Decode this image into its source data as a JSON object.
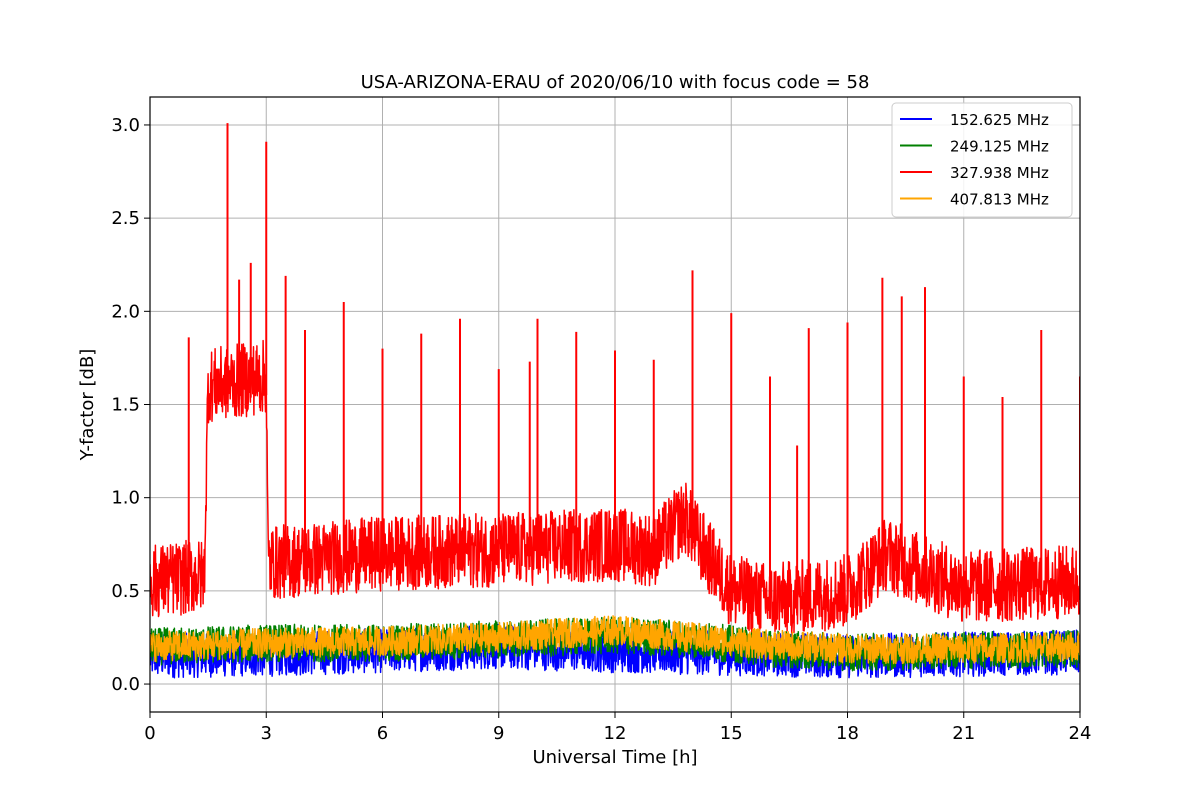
{
  "chart_data": {
    "type": "line",
    "title": "USA-ARIZONA-ERAU of 2020/06/10 with focus code = 58",
    "xlabel": "Universal Time [h]",
    "ylabel": "Y-factor [dB]",
    "xlim": [
      0,
      24
    ],
    "ylim": [
      -0.15,
      3.15
    ],
    "xticks": [
      0,
      3,
      6,
      9,
      12,
      15,
      18,
      21,
      24
    ],
    "xtick_labels": [
      "0",
      "3",
      "6",
      "9",
      "12",
      "15",
      "18",
      "21",
      "24"
    ],
    "yticks": [
      0.0,
      0.5,
      1.0,
      1.5,
      2.0,
      2.5,
      3.0
    ],
    "ytick_labels": [
      "0.0",
      "0.5",
      "1.0",
      "1.5",
      "2.0",
      "2.5",
      "3.0"
    ],
    "grid": true,
    "legend_position": "top-right",
    "series": [
      {
        "name": "152.625 MHz",
        "color": "#0000ff",
        "baseline": [
          [
            0,
            0.15
          ],
          [
            3,
            0.16
          ],
          [
            6,
            0.18
          ],
          [
            9,
            0.2
          ],
          [
            12,
            0.18
          ],
          [
            14,
            0.17
          ],
          [
            16,
            0.16
          ],
          [
            18,
            0.15
          ],
          [
            21,
            0.16
          ],
          [
            24,
            0.17
          ]
        ],
        "noise": 0.12,
        "spikes": []
      },
      {
        "name": "249.125 MHz",
        "color": "#008000",
        "baseline": [
          [
            0,
            0.2
          ],
          [
            3,
            0.22
          ],
          [
            6,
            0.22
          ],
          [
            9,
            0.24
          ],
          [
            12,
            0.26
          ],
          [
            14,
            0.24
          ],
          [
            16,
            0.19
          ],
          [
            18,
            0.17
          ],
          [
            21,
            0.18
          ],
          [
            24,
            0.19
          ]
        ],
        "noise": 0.1,
        "spikes": []
      },
      {
        "name": "327.938 MHz",
        "color": "#ff0000",
        "baseline": [
          [
            0,
            0.55
          ],
          [
            1.4,
            0.58
          ],
          [
            1.5,
            1.6
          ],
          [
            3.0,
            1.65
          ],
          [
            3.05,
            0.65
          ],
          [
            6,
            0.7
          ],
          [
            9,
            0.72
          ],
          [
            12,
            0.75
          ],
          [
            13,
            0.72
          ],
          [
            13.8,
            0.9
          ],
          [
            14.2,
            0.75
          ],
          [
            15,
            0.5
          ],
          [
            16,
            0.45
          ],
          [
            18,
            0.5
          ],
          [
            19,
            0.7
          ],
          [
            20,
            0.6
          ],
          [
            21,
            0.52
          ],
          [
            24,
            0.55
          ]
        ],
        "noise": 0.2,
        "spikes": [
          [
            1.0,
            1.86
          ],
          [
            2.0,
            3.01
          ],
          [
            2.3,
            2.17
          ],
          [
            2.6,
            2.26
          ],
          [
            3.0,
            2.91
          ],
          [
            3.5,
            2.19
          ],
          [
            4.0,
            1.9
          ],
          [
            5.0,
            2.05
          ],
          [
            6.0,
            1.8
          ],
          [
            7.0,
            1.88
          ],
          [
            8.0,
            1.96
          ],
          [
            9.0,
            1.69
          ],
          [
            9.8,
            1.73
          ],
          [
            10.0,
            1.96
          ],
          [
            11.0,
            1.89
          ],
          [
            12.0,
            1.79
          ],
          [
            13.0,
            1.74
          ],
          [
            14.0,
            2.22
          ],
          [
            15.0,
            1.99
          ],
          [
            16.0,
            1.65
          ],
          [
            16.7,
            1.28
          ],
          [
            17.0,
            1.91
          ],
          [
            18.0,
            1.94
          ],
          [
            18.9,
            2.18
          ],
          [
            19.4,
            2.08
          ],
          [
            20.0,
            2.13
          ],
          [
            21.0,
            1.65
          ],
          [
            22.0,
            1.54
          ],
          [
            23.0,
            1.9
          ],
          [
            24.0,
            1.65
          ]
        ]
      },
      {
        "name": "407.813 MHz",
        "color": "#ffa500",
        "baseline": [
          [
            0,
            0.2
          ],
          [
            3,
            0.22
          ],
          [
            6,
            0.23
          ],
          [
            9,
            0.25
          ],
          [
            12,
            0.29
          ],
          [
            14,
            0.25
          ],
          [
            16,
            0.21
          ],
          [
            18,
            0.19
          ],
          [
            21,
            0.19
          ],
          [
            24,
            0.2
          ]
        ],
        "noise": 0.08,
        "spikes": []
      }
    ]
  }
}
